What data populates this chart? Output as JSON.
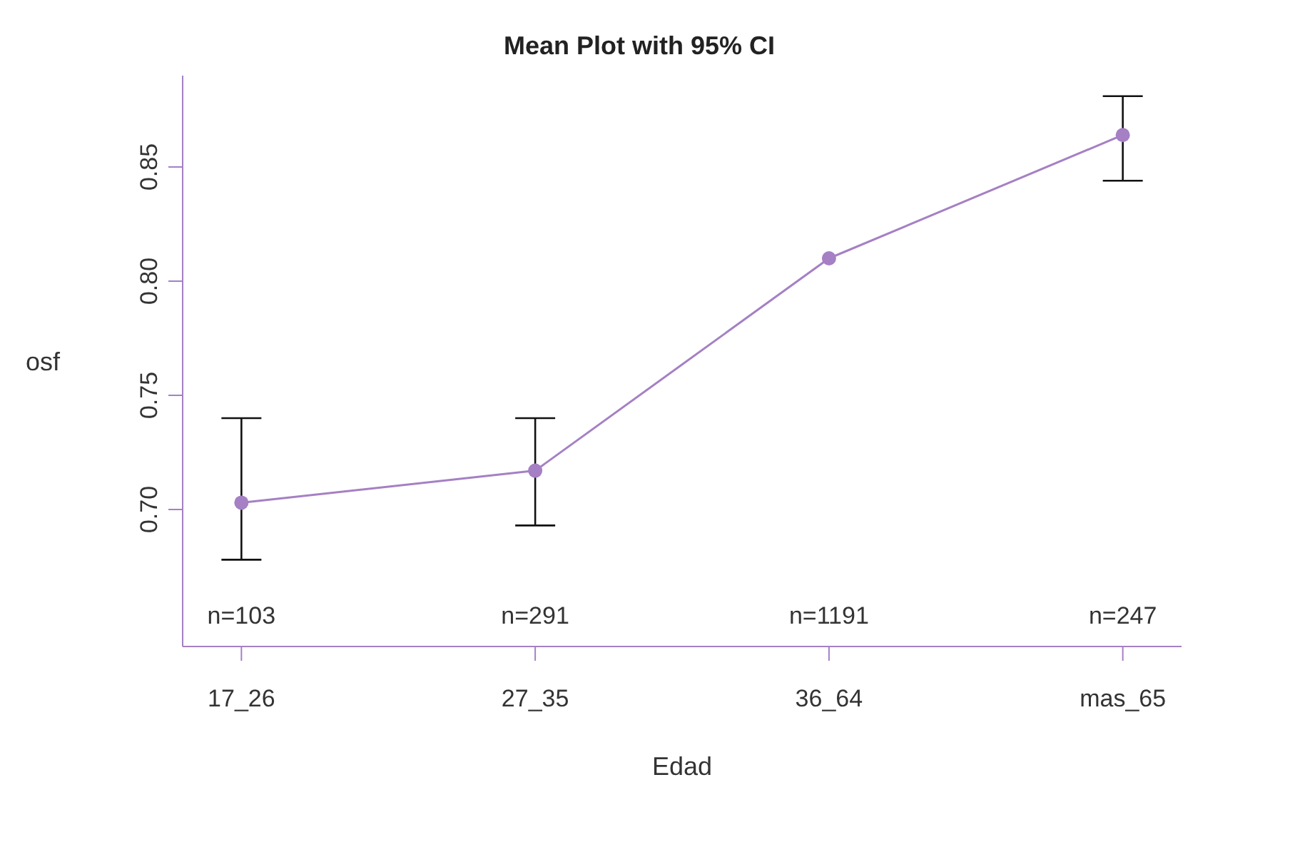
{
  "chart_data": {
    "type": "line",
    "title": "Mean Plot with 95% CI",
    "xlabel": "Edad",
    "ylabel": "osf",
    "categories": [
      "17_26",
      "27_35",
      "36_64",
      "mas_65"
    ],
    "series": [
      {
        "color": "#a580c4",
        "values": [
          0.703,
          0.717,
          0.81,
          0.864
        ],
        "errors": [
          [
            0.678,
            0.74
          ],
          [
            0.693,
            0.74
          ],
          null,
          [
            0.844,
            0.881
          ]
        ]
      }
    ],
    "ylim": [
      0.64,
      0.89
    ],
    "yticks": [
      {
        "value": 0.7,
        "label": "0.70"
      },
      {
        "value": 0.75,
        "label": "0.75"
      },
      {
        "value": 0.8,
        "label": "0.80"
      },
      {
        "value": 0.85,
        "label": "0.85"
      }
    ],
    "annotations": [
      "n=103",
      "n=291",
      "n=1191",
      "n=247"
    ],
    "marker": "circle"
  }
}
